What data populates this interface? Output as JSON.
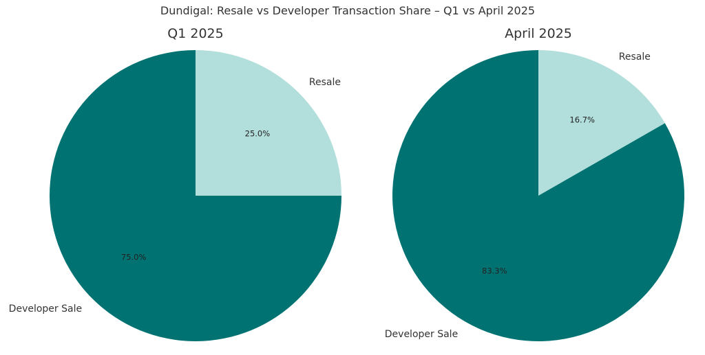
{
  "chart_data": [
    {
      "type": "pie",
      "title": "Q1 2025",
      "slices": [
        {
          "label": "Resale",
          "value": 25.0,
          "pct_label": "25.0%",
          "color": "#b2dfdb"
        },
        {
          "label": "Developer Sale",
          "value": 75.0,
          "pct_label": "75.0%",
          "color": "#007272"
        }
      ],
      "start_angle_deg": 90,
      "direction": "clockwise"
    },
    {
      "type": "pie",
      "title": "April 2025",
      "slices": [
        {
          "label": "Resale",
          "value": 16.7,
          "pct_label": "16.7%",
          "color": "#b2dfdb"
        },
        {
          "label": "Developer Sale",
          "value": 83.3,
          "pct_label": "83.3%",
          "color": "#007272"
        }
      ],
      "start_angle_deg": 90,
      "direction": "clockwise"
    }
  ],
  "figure": {
    "suptitle": "Dundigal: Resale vs Developer Transaction Share – Q1 vs April 2025"
  }
}
